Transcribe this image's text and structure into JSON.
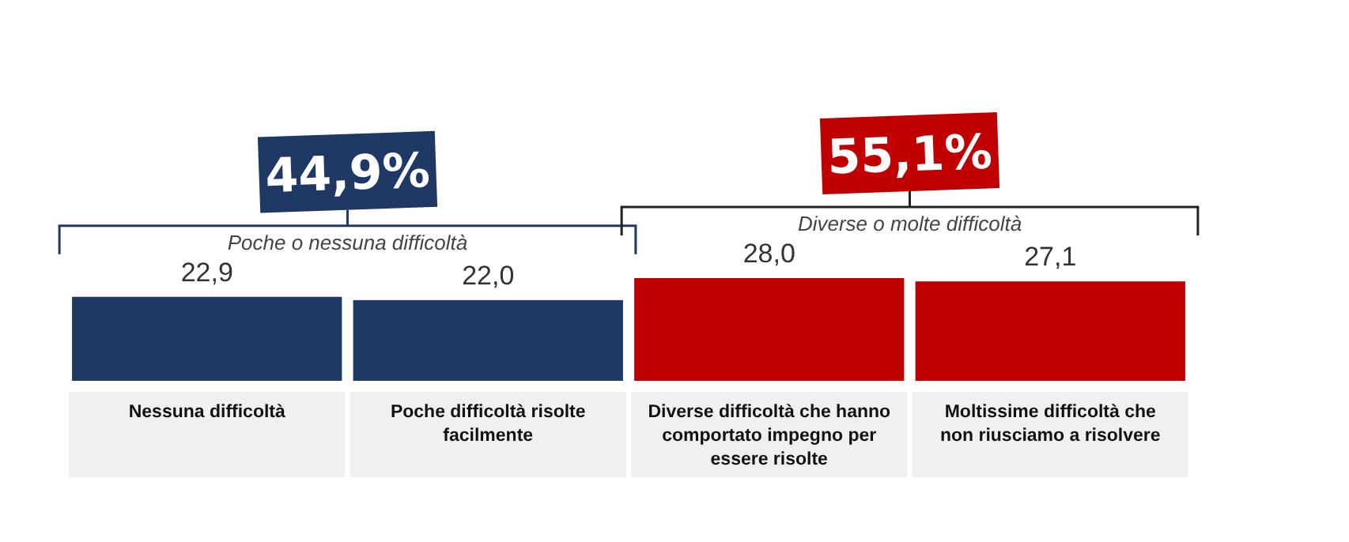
{
  "chart_data": {
    "type": "bar",
    "categories": [
      "Nessuna difficoltà",
      "Poche difficoltà risolte facilmente",
      "Diverse difficoltà che hanno comportato impegno per essere risolte",
      "Moltissime difficoltà che non riusciamo a risolvere"
    ],
    "values": [
      22.9,
      22.0,
      28.0,
      27.1
    ],
    "colors": [
      "#1f3864",
      "#1f3864",
      "#c00000",
      "#c00000"
    ],
    "value_labels": [
      "22,9",
      "22,0",
      "28,0",
      "27,1"
    ],
    "annotations": [
      "44,9%",
      "Poche o nessuna difficoltà",
      "55,1%",
      "Diverse o molte difficoltà"
    ]
  }
}
